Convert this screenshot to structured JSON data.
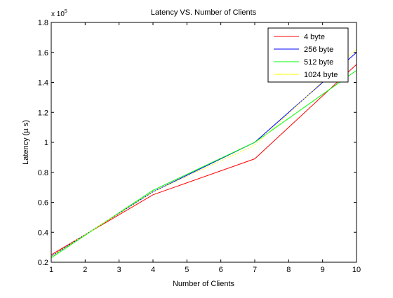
{
  "chart_data": {
    "type": "line",
    "title": "Latency VS. Number of Clients",
    "xlabel": "Number of Clients",
    "ylabel": "Latency (µ s)",
    "y_scale_label": "x 10",
    "y_scale_exponent": "5",
    "xlim": [
      1,
      10
    ],
    "ylim": [
      0.2,
      1.8
    ],
    "x_ticks": [
      1,
      2,
      3,
      4,
      5,
      6,
      7,
      8,
      9,
      10
    ],
    "y_ticks": [
      0.2,
      0.4,
      0.6,
      0.8,
      1.0,
      1.2,
      1.4,
      1.6,
      1.8
    ],
    "y_tick_labels": [
      "0.2",
      "0.4",
      "0.6",
      "0.8",
      "1",
      "1.2",
      "1.4",
      "1.6",
      "1.8"
    ],
    "grid": false,
    "legend_position": "top-right",
    "x": [
      1,
      4,
      7,
      10
    ],
    "series": [
      {
        "name": "4 byte",
        "color": "#ff0000",
        "values": [
          0.25,
          0.65,
          0.89,
          1.52
        ]
      },
      {
        "name": "256 byte",
        "color": "#0000ff",
        "values": [
          0.24,
          0.67,
          1.0,
          1.6
        ]
      },
      {
        "name": "512 byte",
        "color": "#00ff00",
        "values": [
          0.23,
          0.68,
          1.0,
          1.48
        ]
      },
      {
        "name": "1024 byte",
        "color": "#ffff00",
        "values": [
          0.24,
          0.67,
          0.98,
          1.62
        ]
      }
    ]
  }
}
